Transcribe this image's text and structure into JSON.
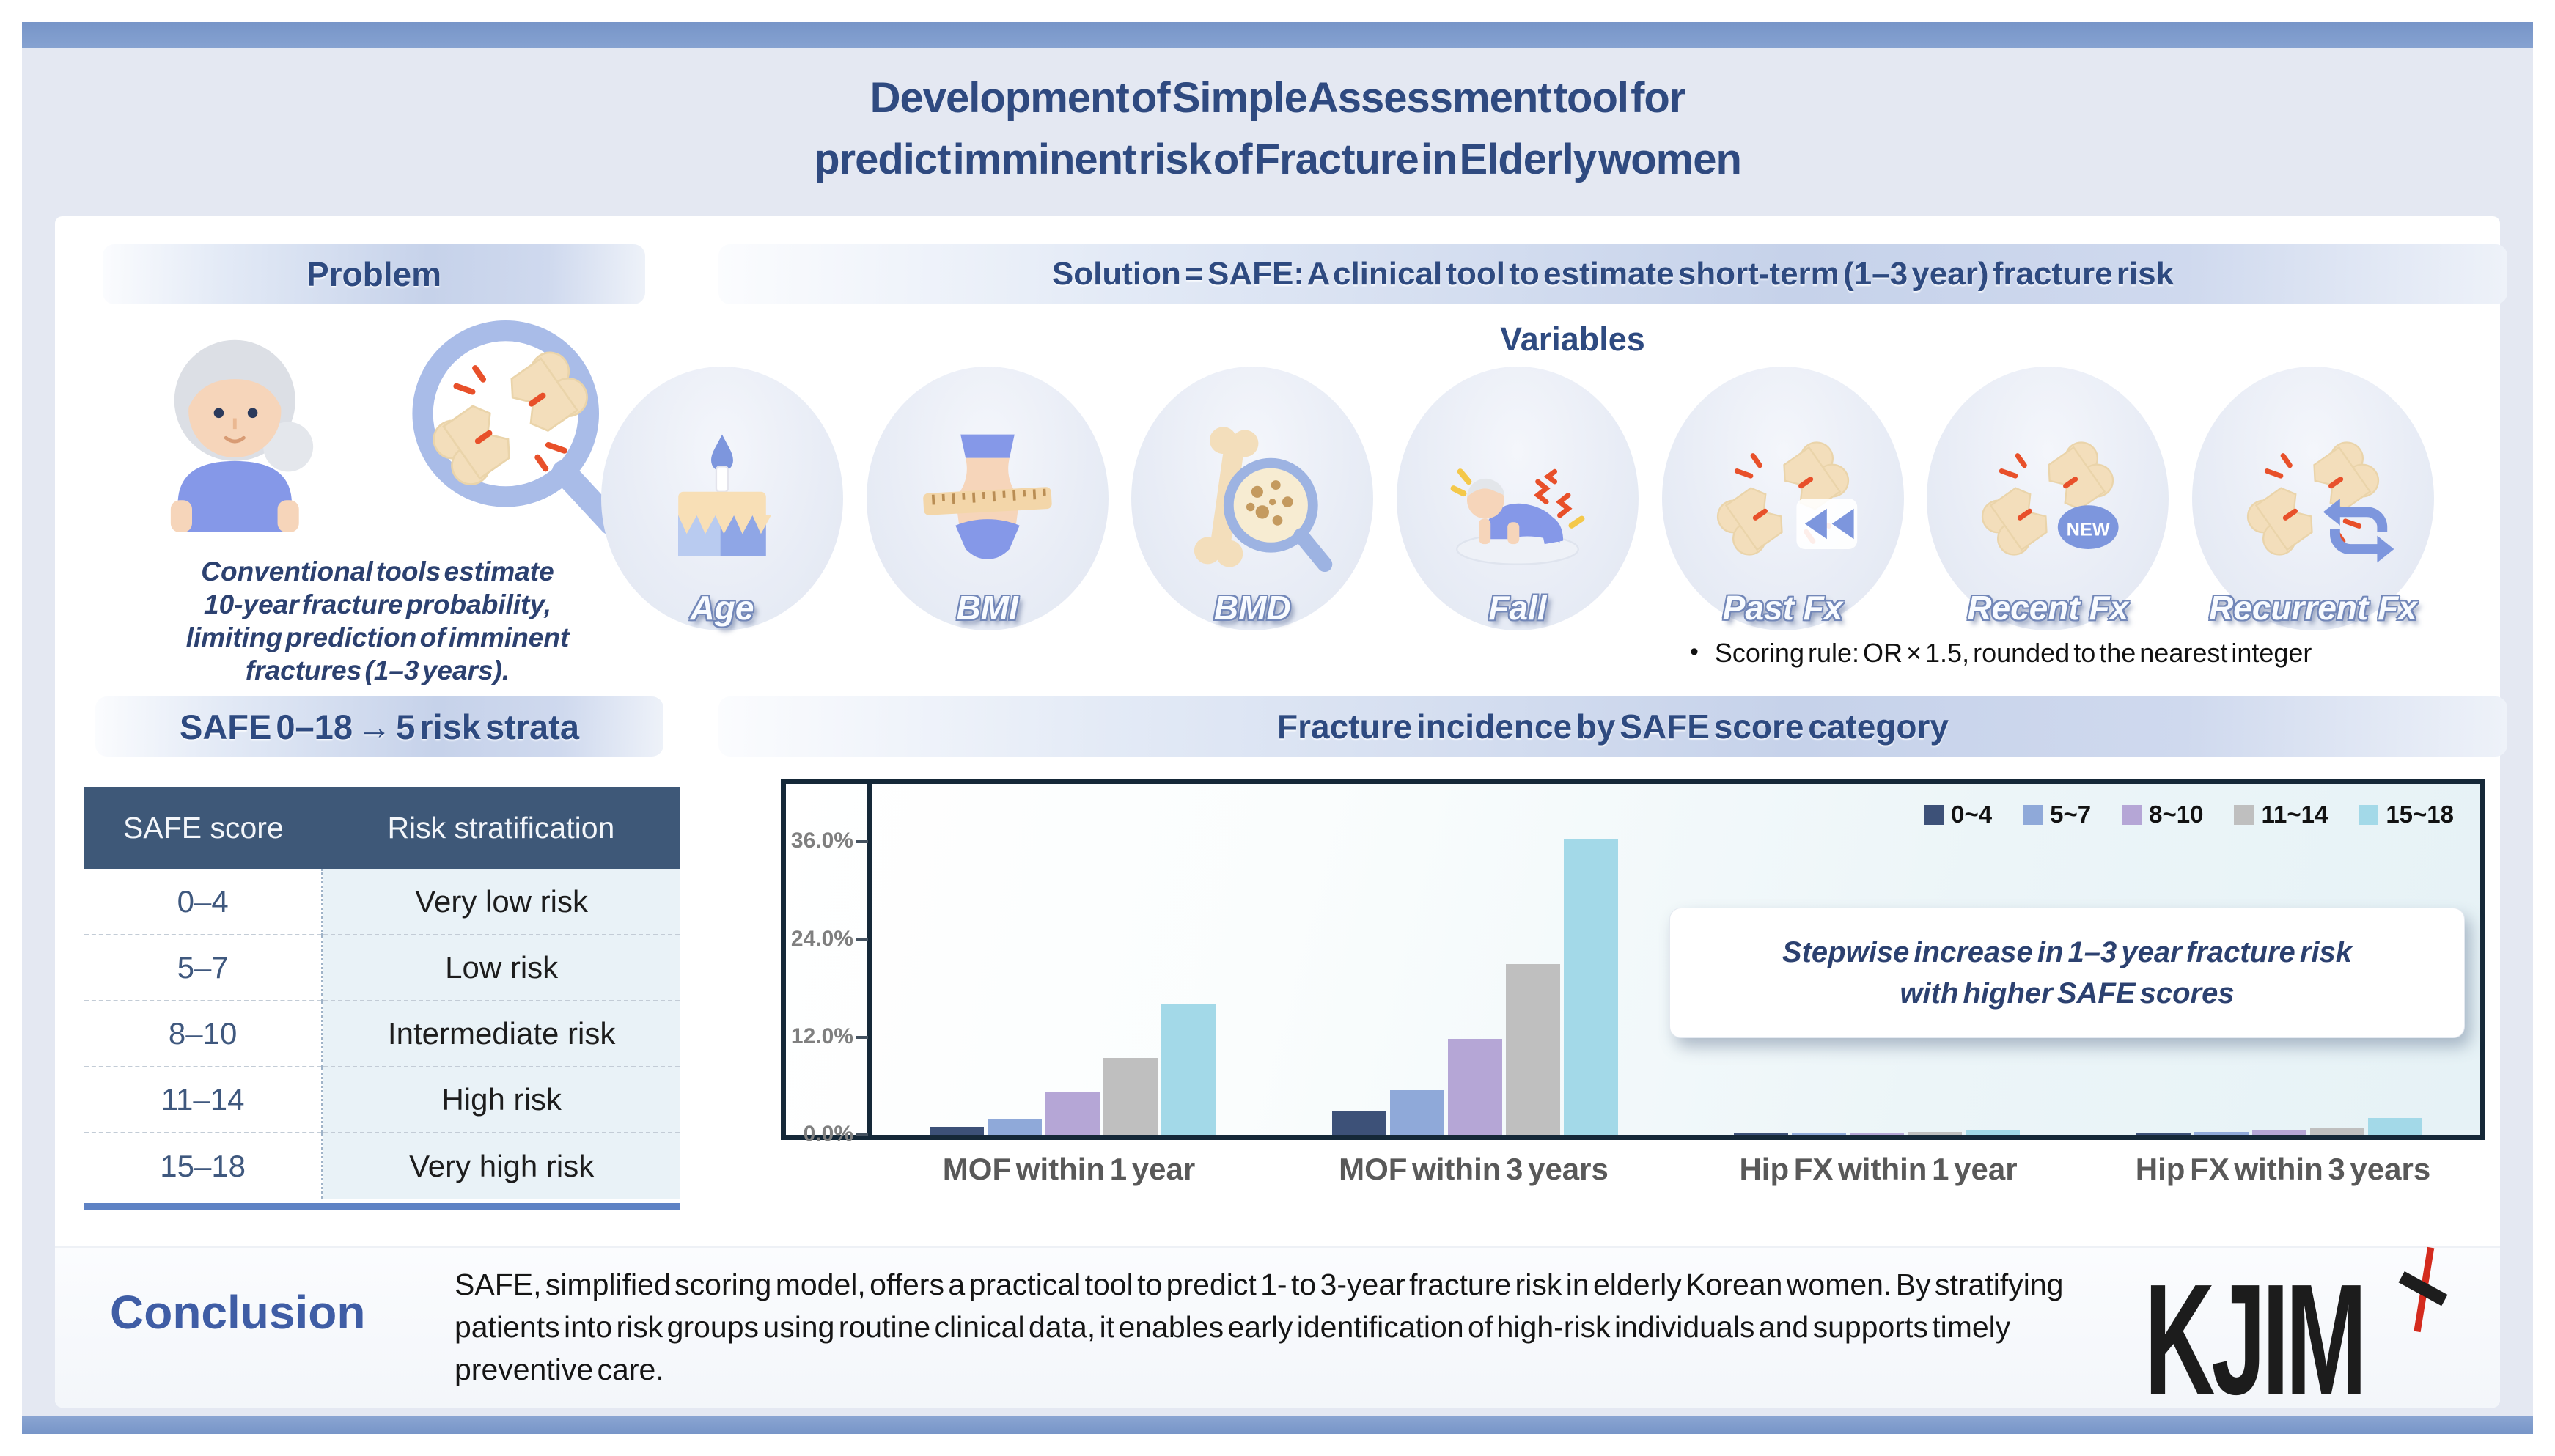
{
  "header": {
    "title_line1": "Development of Simple Assessment tool for",
    "title_line2": "predict imminent risk of Fracture in Elderly women"
  },
  "problem": {
    "heading": "Problem",
    "icons": [
      "elderly-woman-icon",
      "broken-bone-magnifier-icon"
    ],
    "lines": [
      "Conventional tools estimate",
      "10-year fracture probability,",
      "limiting prediction of imminent",
      "fractures (1–3 years)."
    ]
  },
  "solution": {
    "heading": "Solution = SAFE: A clinical tool to estimate short-term (1–3 year) fracture risk",
    "variables_label": "Variables",
    "variables": [
      {
        "label": "Age",
        "icon": "birthday-cake-icon"
      },
      {
        "label": "BMI",
        "icon": "body-measure-icon"
      },
      {
        "label": "BMD",
        "icon": "bone-density-icon"
      },
      {
        "label": "Fall",
        "icon": "falling-person-icon"
      },
      {
        "label": "Past Fx",
        "icon": "past-fracture-icon"
      },
      {
        "label": "Recent Fx",
        "icon": "recent-fracture-icon"
      },
      {
        "label": "Recurrent Fx",
        "icon": "recurrent-fracture-icon"
      }
    ],
    "bullet": "•",
    "scoring_rule": "Scoring rule: OR × 1.5, rounded to the nearest integer"
  },
  "strata": {
    "heading": "SAFE 0–18 → 5 risk strata",
    "columns": [
      "SAFE score",
      "Risk stratification"
    ],
    "rows": [
      [
        "0–4",
        "Very low risk"
      ],
      [
        "5–7",
        "Low risk"
      ],
      [
        "8–10",
        "Intermediate risk"
      ],
      [
        "11–14",
        "High risk"
      ],
      [
        "15–18",
        "Very high risk"
      ]
    ]
  },
  "chart": {
    "heading": "Fracture incidence by SAFE score category",
    "callout_line1": "Stepwise increase in 1–3 year fracture risk",
    "callout_line2": "with higher SAFE scores"
  },
  "chart_data": {
    "type": "bar",
    "title": "Fracture incidence by SAFE score category",
    "categories": [
      "MOF within 1 year",
      "MOF within 3 years",
      "Hip FX within 1 year",
      "Hip FX within 3 years"
    ],
    "series": [
      {
        "name": "0~4",
        "color": "#3d5178",
        "values": [
          1.0,
          3.0,
          0.05,
          0.15
        ]
      },
      {
        "name": "5~7",
        "color": "#8fa9d9",
        "values": [
          1.9,
          5.5,
          0.1,
          0.35
        ]
      },
      {
        "name": "8~10",
        "color": "#b5a6d6",
        "values": [
          5.3,
          11.8,
          0.15,
          0.55
        ]
      },
      {
        "name": "11~14",
        "color": "#bfbfbf",
        "values": [
          9.5,
          21.0,
          0.4,
          0.85
        ]
      },
      {
        "name": "15~18",
        "color": "#a3d9e8",
        "values": [
          16.0,
          36.3,
          0.65,
          2.1
        ]
      }
    ],
    "xlabel": "",
    "ylabel": "",
    "yticks": [
      {
        "label": "0.0%",
        "value": 0
      },
      {
        "label": "12.0%",
        "value": 12
      },
      {
        "label": "24.0%",
        "value": 24
      },
      {
        "label": "36.0%",
        "value": 36
      }
    ],
    "ylim": [
      0,
      38
    ],
    "grid": false,
    "legend_position": "top-right"
  },
  "conclusion": {
    "heading": "Conclusion",
    "text": "SAFE, simplified scoring model, offers a practical tool to predict 1- to 3-year fracture risk in elderly Korean women. By stratifying patients into risk groups using routine clinical data, it enables early identification of high-risk individuals and supports timely preventive care."
  },
  "logo": {
    "text": "KJIM"
  }
}
